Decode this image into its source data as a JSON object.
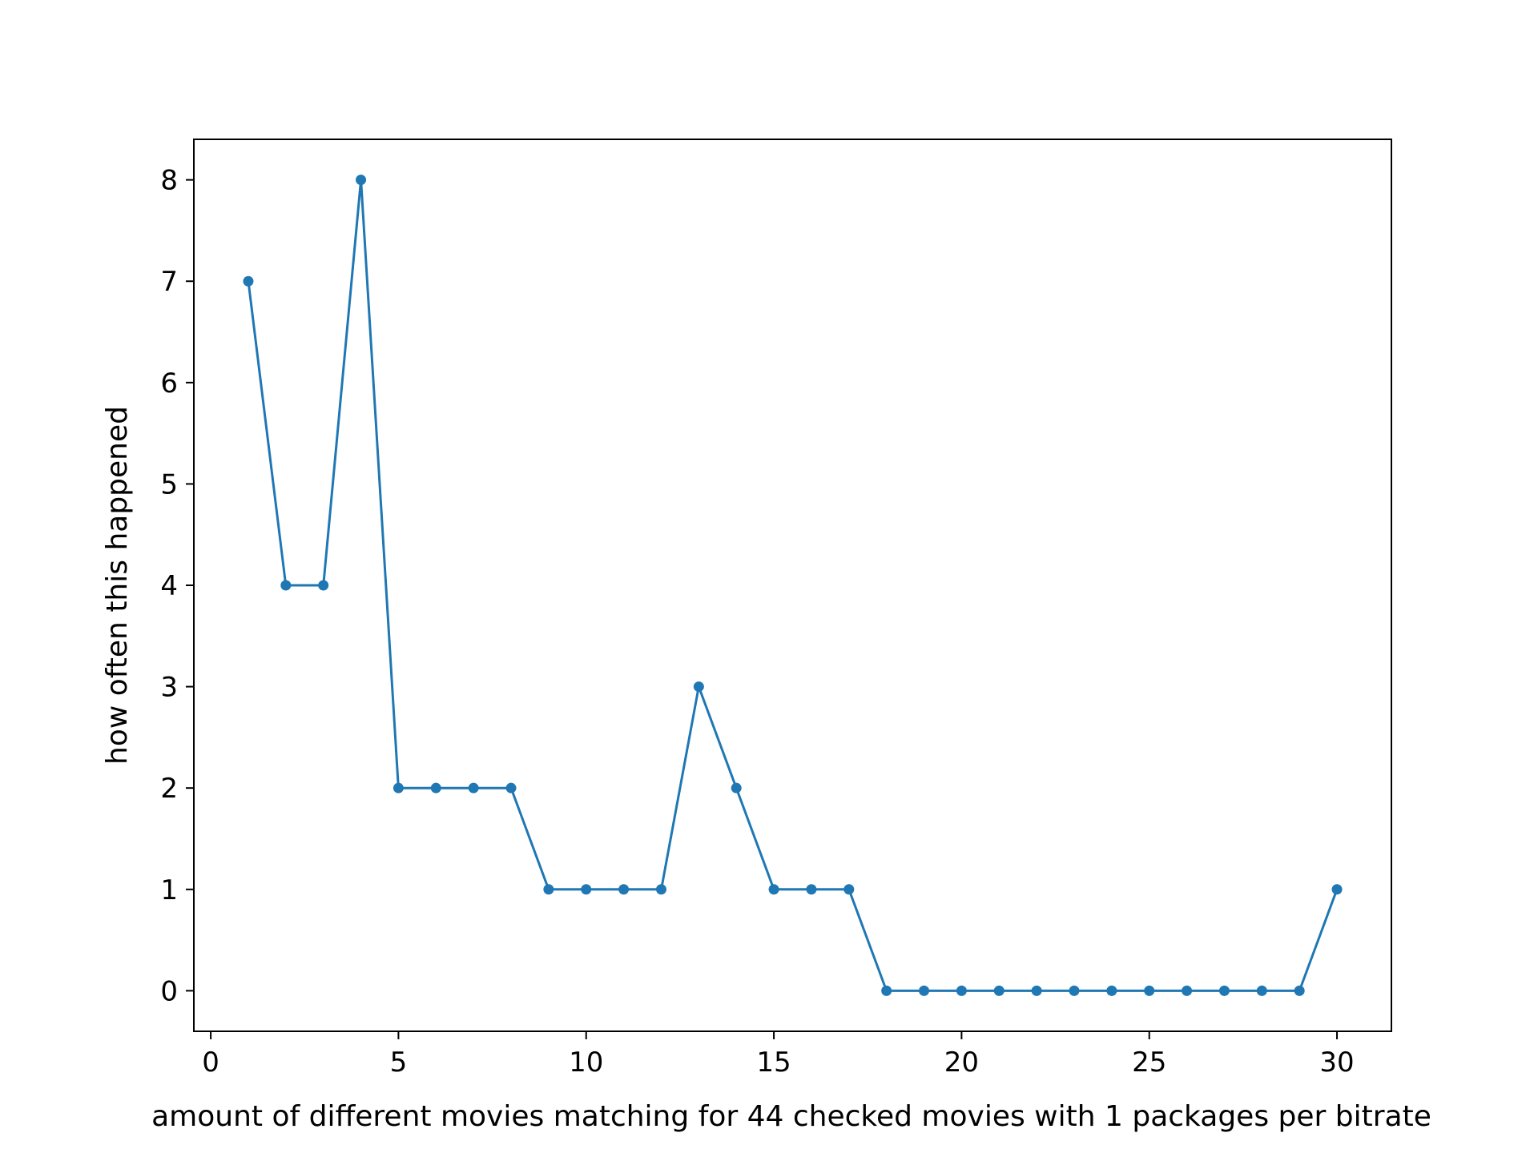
{
  "chart_data": {
    "type": "line",
    "title": "",
    "xlabel": "amount of different movies matching for 44 checked movies with 1 packages per bitrate",
    "ylabel": "how often this happened",
    "x": [
      1,
      2,
      3,
      4,
      5,
      6,
      7,
      8,
      9,
      10,
      11,
      12,
      13,
      14,
      15,
      16,
      17,
      18,
      19,
      20,
      21,
      22,
      23,
      24,
      25,
      26,
      27,
      28,
      29,
      30
    ],
    "series": [
      {
        "values": [
          7,
          4,
          4,
          8,
          2,
          2,
          2,
          2,
          1,
          1,
          1,
          1,
          3,
          2,
          1,
          1,
          1,
          0,
          0,
          0,
          0,
          0,
          0,
          0,
          0,
          0,
          0,
          0,
          0,
          1
        ],
        "color": "#1f77b4",
        "marker": "point"
      }
    ],
    "xlim": [
      -0.45,
      31.45
    ],
    "ylim": [
      -0.4,
      8.4
    ],
    "xticks": [
      0,
      5,
      10,
      15,
      20,
      25,
      30
    ],
    "xtick_labels": [
      "0",
      "5",
      "10",
      "15",
      "20",
      "25",
      "30"
    ],
    "yticks": [
      0,
      1,
      2,
      3,
      4,
      5,
      6,
      7,
      8
    ],
    "ytick_labels": [
      "0",
      "1",
      "2",
      "3",
      "4",
      "5",
      "6",
      "7",
      "8"
    ],
    "grid": false,
    "legend": "none"
  }
}
